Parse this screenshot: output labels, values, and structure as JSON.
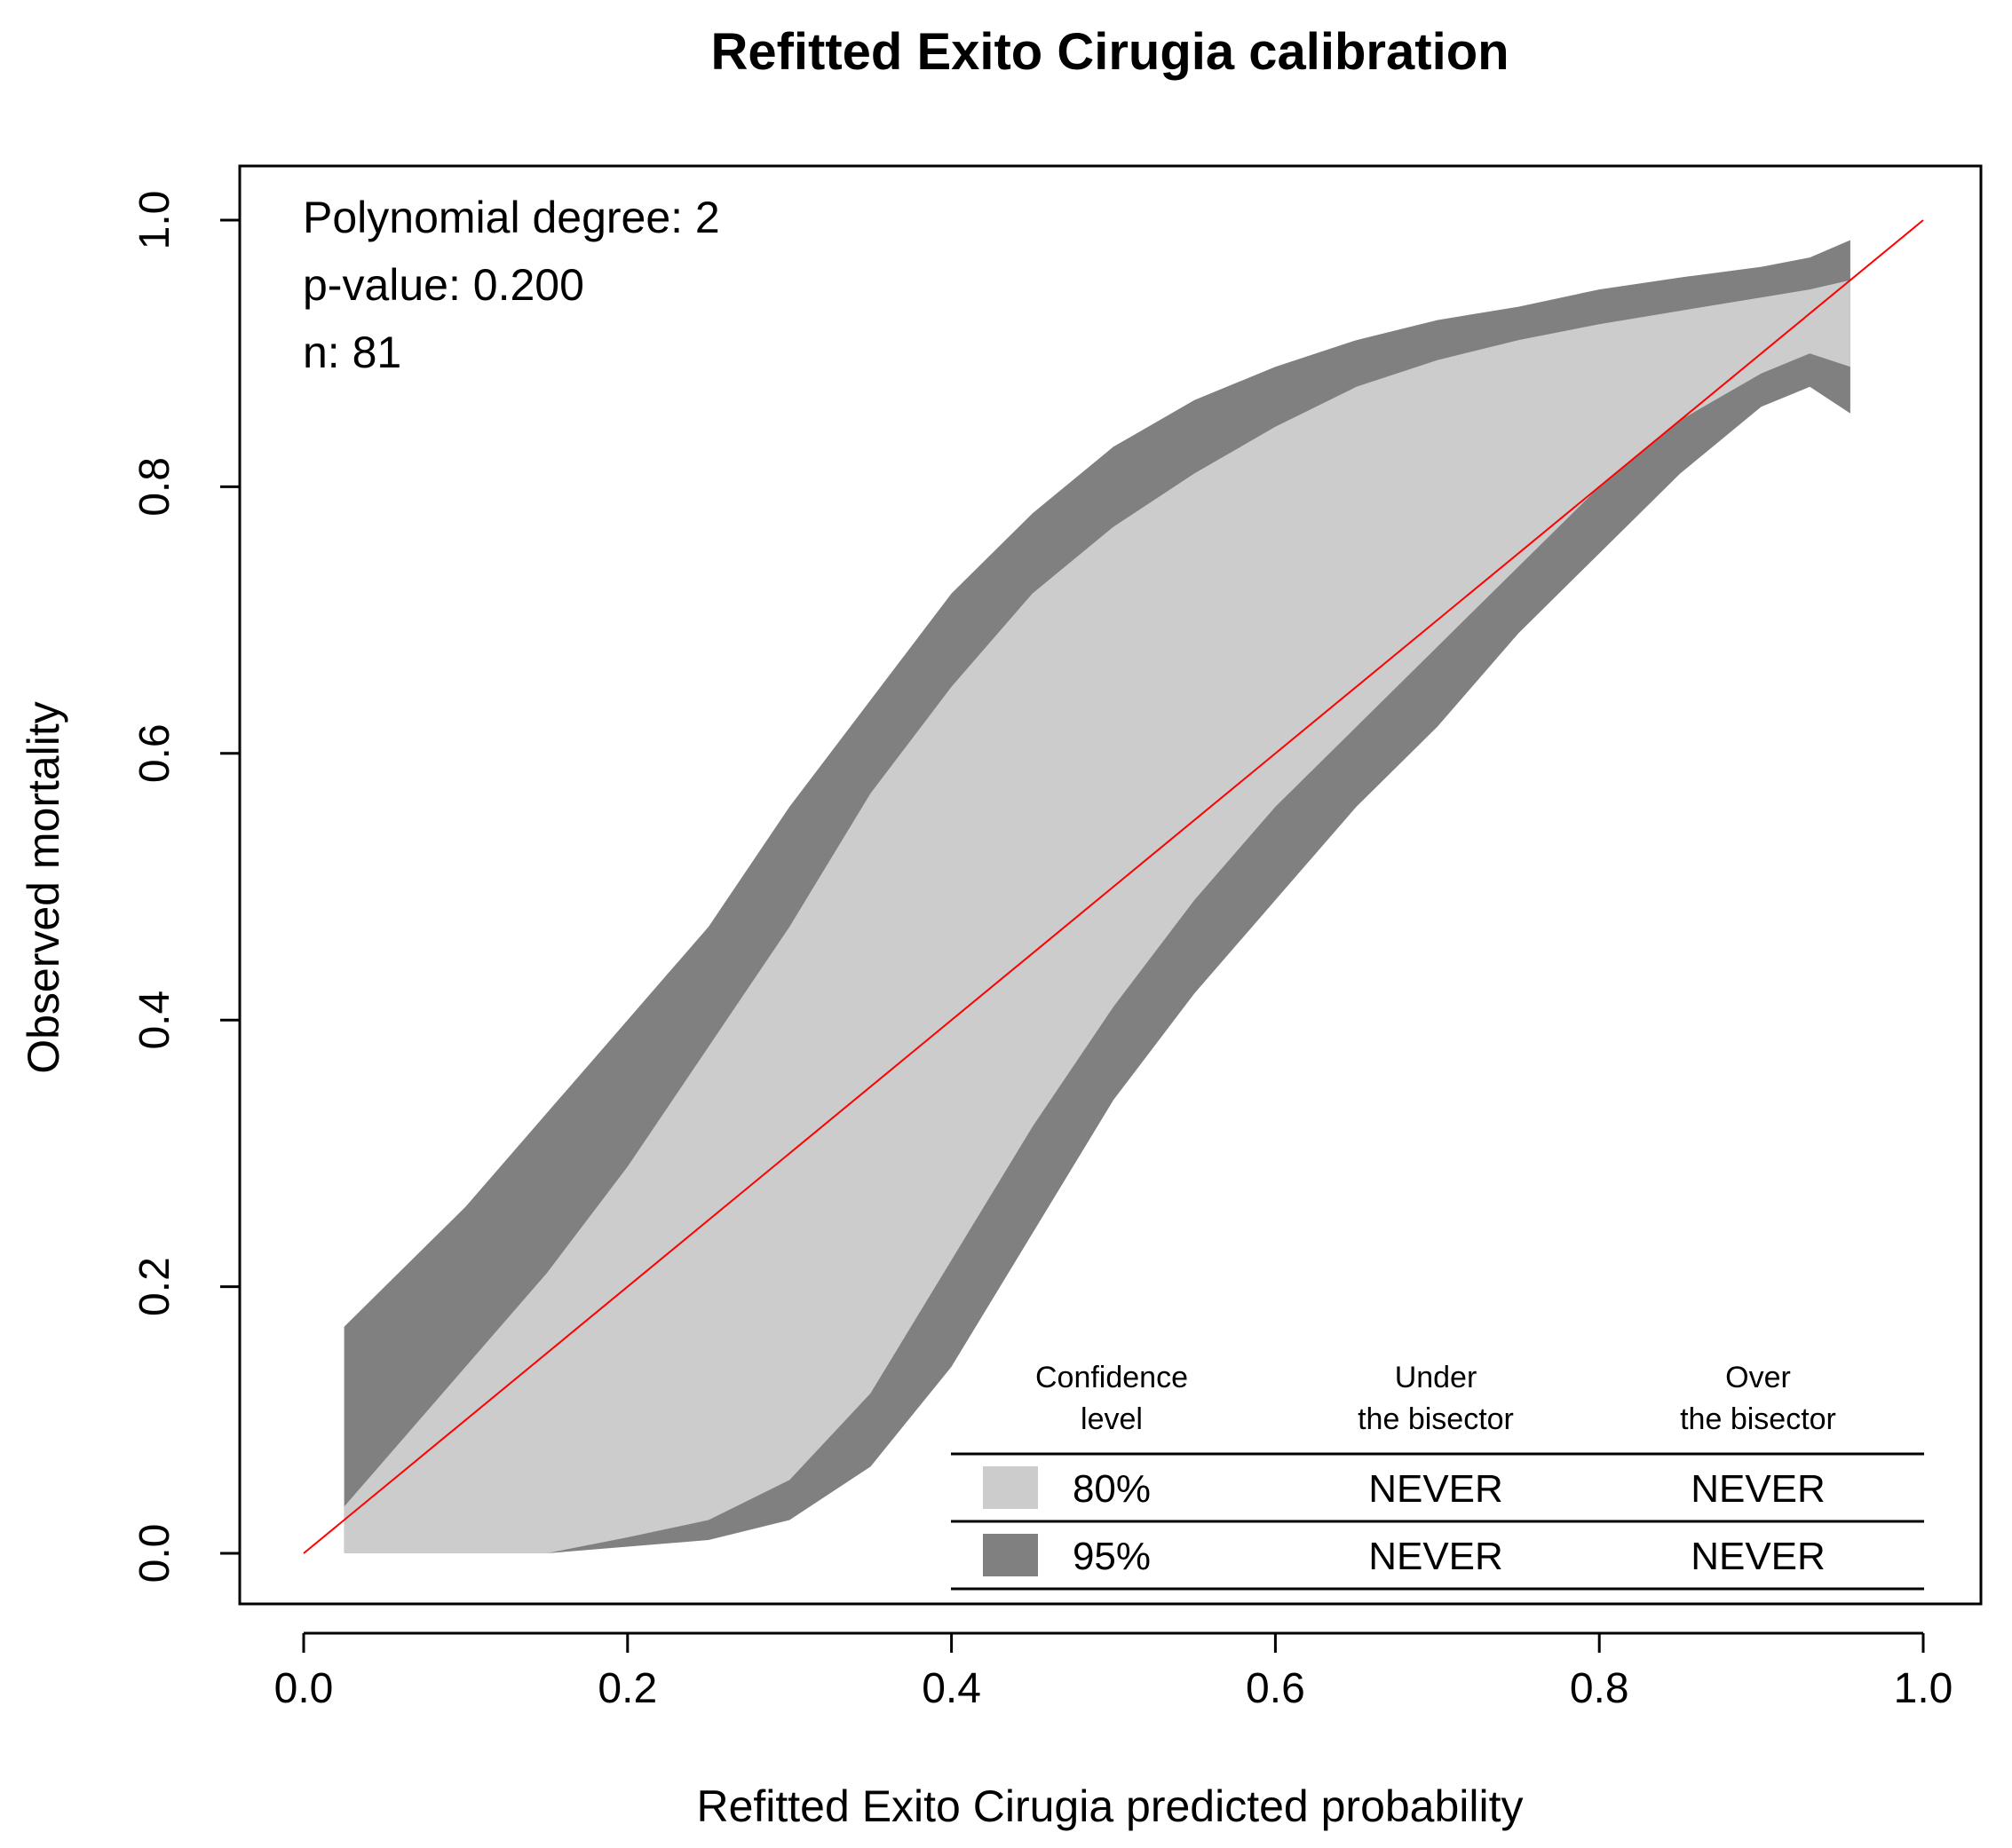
{
  "chart_data": {
    "type": "area",
    "title": "Refitted Exito Cirugia calibration",
    "xlabel": "Refitted Exito Cirugia predicted probability",
    "ylabel": "Observed mortality",
    "xlim": [
      0.0,
      1.0
    ],
    "ylim": [
      0.0,
      1.0
    ],
    "x_ticks": [
      "0.0",
      "0.2",
      "0.4",
      "0.6",
      "0.8",
      "1.0"
    ],
    "y_ticks": [
      "0.0",
      "0.2",
      "0.4",
      "0.6",
      "0.8",
      "1.0"
    ],
    "grid": false,
    "annotations": {
      "degree": "Polynomial degree: 2",
      "pvalue": "p-value: 0.200",
      "n": "n: 81"
    },
    "bisector": {
      "name": "bisector",
      "x": [
        0.0,
        1.0
      ],
      "y": [
        0.0,
        1.0
      ],
      "color": "#ff0000"
    },
    "x": [
      0.025,
      0.05,
      0.1,
      0.15,
      0.2,
      0.25,
      0.3,
      0.35,
      0.4,
      0.45,
      0.5,
      0.55,
      0.6,
      0.65,
      0.7,
      0.75,
      0.8,
      0.85,
      0.9,
      0.93,
      0.955
    ],
    "series": [
      {
        "name": "95%",
        "color": "#808080",
        "upper": [
          0.17,
          0.2,
          0.26,
          0.33,
          0.4,
          0.47,
          0.56,
          0.64,
          0.72,
          0.78,
          0.83,
          0.865,
          0.89,
          0.91,
          0.925,
          0.935,
          0.948,
          0.957,
          0.965,
          0.972,
          0.985
        ],
        "lower": [
          0.0,
          0.0,
          0.0,
          0.0,
          0.005,
          0.01,
          0.025,
          0.065,
          0.14,
          0.24,
          0.34,
          0.42,
          0.49,
          0.56,
          0.62,
          0.69,
          0.75,
          0.81,
          0.86,
          0.875,
          0.855
        ]
      },
      {
        "name": "80%",
        "color": "#cccccc",
        "upper": [
          0.035,
          0.07,
          0.14,
          0.21,
          0.29,
          0.38,
          0.47,
          0.57,
          0.65,
          0.72,
          0.77,
          0.81,
          0.845,
          0.875,
          0.895,
          0.91,
          0.922,
          0.932,
          0.942,
          0.948,
          0.955
        ],
        "lower": [
          0.0,
          0.0,
          0.0,
          0.0,
          0.012,
          0.025,
          0.055,
          0.12,
          0.22,
          0.32,
          0.41,
          0.49,
          0.56,
          0.62,
          0.68,
          0.74,
          0.8,
          0.85,
          0.885,
          0.9,
          0.89
        ]
      }
    ],
    "legend": {
      "placement": "bottom-right",
      "headers": {
        "level_line1": "Confidence",
        "level_line2": "level",
        "under_line1": "Under",
        "under_line2": "the bisector",
        "over_line1": "Over",
        "over_line2": "the bisector"
      },
      "rows": [
        {
          "level": "80%",
          "under": "NEVER",
          "over": "NEVER",
          "color": "#cccccc"
        },
        {
          "level": "95%",
          "under": "NEVER",
          "over": "NEVER",
          "color": "#808080"
        }
      ]
    }
  }
}
